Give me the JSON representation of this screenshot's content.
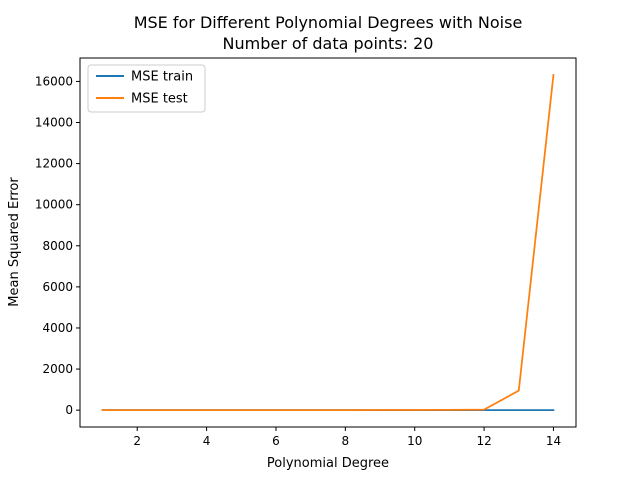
{
  "chart_data": {
    "type": "line",
    "title": "MSE for Different Polynomial Degrees with Noise",
    "subtitle": "Number of data points: 20",
    "xlabel": "Polynomial Degree",
    "ylabel": "Mean Squared Error",
    "xlim": [
      0.35,
      14.65
    ],
    "ylim": [
      -820,
      17140
    ],
    "xticks": [
      2,
      4,
      6,
      8,
      10,
      12,
      14
    ],
    "yticks": [
      0,
      2000,
      4000,
      6000,
      8000,
      10000,
      12000,
      14000,
      16000
    ],
    "x": [
      1,
      2,
      3,
      4,
      5,
      6,
      7,
      8,
      9,
      10,
      11,
      12,
      13,
      14
    ],
    "series": [
      {
        "name": "MSE train",
        "color": "#1f77b4",
        "values": [
          1,
          1,
          1,
          1,
          1,
          1,
          1,
          1,
          1,
          1,
          1,
          1,
          1,
          1
        ]
      },
      {
        "name": "MSE test",
        "color": "#ff7f0e",
        "values": [
          2,
          2,
          2,
          2,
          2,
          3,
          3,
          4,
          5,
          8,
          15,
          25,
          950,
          16320
        ]
      }
    ],
    "grid": false,
    "legend_position": "upper-left"
  }
}
